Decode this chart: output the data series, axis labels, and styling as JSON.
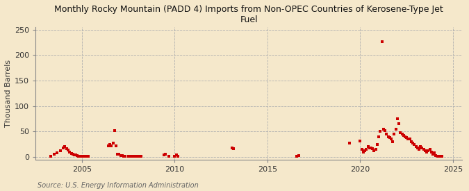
{
  "title": "Monthly Rocky Mountain (PADD 4) Imports from Non-OPEC Countries of Kerosene-Type Jet\nFuel",
  "ylabel": "Thousand Barrels",
  "source": "Source: U.S. Energy Information Administration",
  "background_color": "#f5e8cb",
  "dot_color": "#cc0000",
  "dot_size": 5,
  "xlim": [
    2002.5,
    2025.5
  ],
  "ylim": [
    -5,
    255
  ],
  "yticks": [
    0,
    50,
    100,
    150,
    200,
    250
  ],
  "xticks": [
    2005,
    2010,
    2015,
    2020,
    2025
  ],
  "data_points": [
    [
      2003.33,
      2
    ],
    [
      2003.5,
      5
    ],
    [
      2003.67,
      8
    ],
    [
      2003.83,
      12
    ],
    [
      2004.0,
      18
    ],
    [
      2004.08,
      20
    ],
    [
      2004.17,
      16
    ],
    [
      2004.25,
      14
    ],
    [
      2004.33,
      10
    ],
    [
      2004.42,
      7
    ],
    [
      2004.5,
      5
    ],
    [
      2004.58,
      4
    ],
    [
      2004.67,
      4
    ],
    [
      2004.75,
      3
    ],
    [
      2004.83,
      2
    ],
    [
      2004.92,
      2
    ],
    [
      2005.0,
      1
    ],
    [
      2005.08,
      2
    ],
    [
      2005.17,
      1
    ],
    [
      2005.25,
      1
    ],
    [
      2005.33,
      1
    ],
    [
      2006.42,
      22
    ],
    [
      2006.5,
      25
    ],
    [
      2006.58,
      22
    ],
    [
      2006.67,
      27
    ],
    [
      2006.75,
      52
    ],
    [
      2006.83,
      22
    ],
    [
      2006.92,
      5
    ],
    [
      2007.0,
      5
    ],
    [
      2007.08,
      3
    ],
    [
      2007.17,
      3
    ],
    [
      2007.25,
      2
    ],
    [
      2007.33,
      2
    ],
    [
      2007.5,
      2
    ],
    [
      2007.58,
      1
    ],
    [
      2007.67,
      2
    ],
    [
      2007.75,
      1
    ],
    [
      2007.83,
      1
    ],
    [
      2008.0,
      1
    ],
    [
      2008.08,
      1
    ],
    [
      2008.17,
      2
    ],
    [
      2009.42,
      4
    ],
    [
      2009.5,
      5
    ],
    [
      2009.67,
      1
    ],
    [
      2010.0,
      2
    ],
    [
      2010.08,
      4
    ],
    [
      2010.17,
      1
    ],
    [
      2013.08,
      18
    ],
    [
      2013.17,
      17
    ],
    [
      2016.58,
      2
    ],
    [
      2016.67,
      3
    ],
    [
      2019.42,
      28
    ],
    [
      2020.0,
      32
    ],
    [
      2020.08,
      15
    ],
    [
      2020.17,
      10
    ],
    [
      2020.25,
      13
    ],
    [
      2020.33,
      15
    ],
    [
      2020.42,
      20
    ],
    [
      2020.5,
      18
    ],
    [
      2020.58,
      18
    ],
    [
      2020.67,
      17
    ],
    [
      2020.75,
      12
    ],
    [
      2020.83,
      15
    ],
    [
      2020.92,
      25
    ],
    [
      2021.0,
      40
    ],
    [
      2021.08,
      50
    ],
    [
      2021.17,
      226
    ],
    [
      2021.25,
      55
    ],
    [
      2021.33,
      52
    ],
    [
      2021.42,
      45
    ],
    [
      2021.5,
      40
    ],
    [
      2021.58,
      38
    ],
    [
      2021.67,
      35
    ],
    [
      2021.75,
      30
    ],
    [
      2021.83,
      45
    ],
    [
      2021.92,
      55
    ],
    [
      2022.0,
      75
    ],
    [
      2022.08,
      65
    ],
    [
      2022.17,
      48
    ],
    [
      2022.25,
      45
    ],
    [
      2022.33,
      42
    ],
    [
      2022.42,
      40
    ],
    [
      2022.5,
      38
    ],
    [
      2022.58,
      35
    ],
    [
      2022.67,
      35
    ],
    [
      2022.75,
      30
    ],
    [
      2022.83,
      28
    ],
    [
      2022.92,
      25
    ],
    [
      2023.0,
      20
    ],
    [
      2023.08,
      18
    ],
    [
      2023.17,
      15
    ],
    [
      2023.25,
      20
    ],
    [
      2023.33,
      18
    ],
    [
      2023.42,
      15
    ],
    [
      2023.5,
      12
    ],
    [
      2023.58,
      10
    ],
    [
      2023.67,
      12
    ],
    [
      2023.75,
      15
    ],
    [
      2023.83,
      10
    ],
    [
      2023.92,
      5
    ],
    [
      2024.0,
      8
    ],
    [
      2024.08,
      3
    ],
    [
      2024.17,
      2
    ],
    [
      2024.25,
      2
    ],
    [
      2024.33,
      1
    ],
    [
      2024.42,
      1
    ]
  ]
}
